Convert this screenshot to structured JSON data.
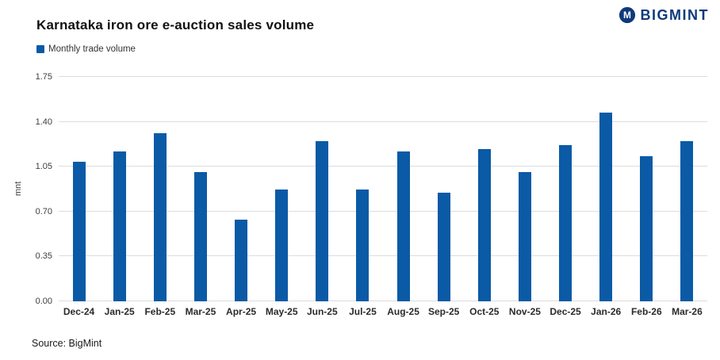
{
  "title": "Karnataka iron ore e-auction sales volume",
  "logo": {
    "text": "BIGMINT",
    "icon": "bigmint-m-icon"
  },
  "legend": {
    "label": "Monthly trade volume"
  },
  "source": "Source: BigMint",
  "colors": {
    "bar": "#0a5aa6",
    "logo": "#0e3a7c",
    "gridline": "#dcdcdc"
  },
  "chart_data": {
    "type": "bar",
    "title": "Karnataka iron ore e-auction sales volume",
    "xlabel": "",
    "ylabel": "mnt",
    "categories": [
      "Dec-24",
      "Jan-25",
      "Feb-25",
      "Mar-25",
      "Apr-25",
      "May-25",
      "Jun-25",
      "Jul-25",
      "Aug-25",
      "Sep-25",
      "Oct-25",
      "Nov-25",
      "Dec-25",
      "Jan-26",
      "Feb-26",
      "Mar-26"
    ],
    "values": [
      1.09,
      1.17,
      1.31,
      1.01,
      0.64,
      0.87,
      1.25,
      0.87,
      1.17,
      0.85,
      1.19,
      1.01,
      1.22,
      1.47,
      1.13,
      1.25
    ],
    "series_name": "Monthly trade volume",
    "yticks": [
      0.0,
      0.35,
      0.7,
      1.05,
      1.4,
      1.75
    ],
    "ylim": [
      0,
      1.75
    ],
    "grid": true,
    "legend_position": "top-left"
  }
}
